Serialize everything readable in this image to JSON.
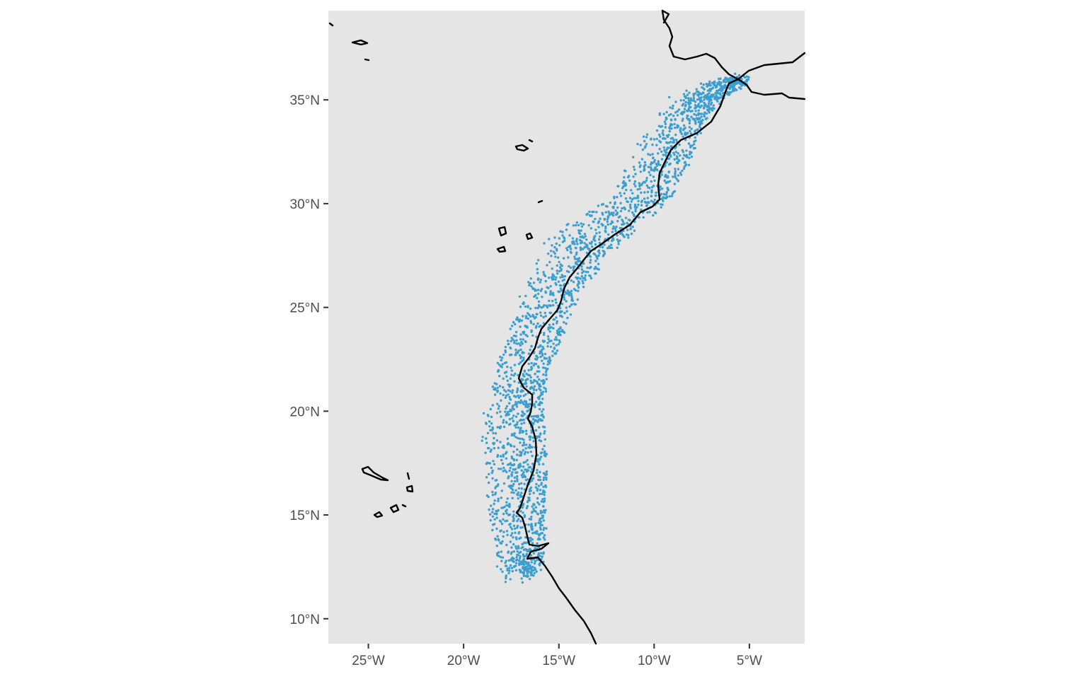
{
  "map": {
    "panel_color": "#e5e5e5",
    "point_color": "#3a9fcf",
    "coast_color": "#000000",
    "x_axis": {
      "ticks": [
        {
          "value": -25,
          "label": "25°W"
        },
        {
          "value": -20,
          "label": "20°W"
        },
        {
          "value": -15,
          "label": "15°W"
        },
        {
          "value": -10,
          "label": "10°W"
        },
        {
          "value": -5,
          "label": "5°W"
        }
      ],
      "range": [
        -27.1,
        -2.1
      ]
    },
    "y_axis": {
      "ticks": [
        {
          "value": 35,
          "label": "35°N"
        },
        {
          "value": 30,
          "label": "30°N"
        },
        {
          "value": 25,
          "label": "25°N"
        },
        {
          "value": 20,
          "label": "20°N"
        },
        {
          "value": 15,
          "label": "15°N"
        },
        {
          "value": 10,
          "label": "10°N"
        }
      ],
      "range": [
        8.8,
        39.3
      ]
    },
    "points_distribution": {
      "description_none": "",
      "band_centerline_lon_lat": [
        [
          -5.5,
          36.0
        ],
        [
          -7.0,
          35.6
        ],
        [
          -8.5,
          34.8
        ],
        [
          -9.5,
          33.5
        ],
        [
          -10.2,
          32.0
        ],
        [
          -11.2,
          30.5
        ],
        [
          -13.0,
          29.2
        ],
        [
          -14.5,
          28.0
        ],
        [
          -15.5,
          26.5
        ],
        [
          -16.2,
          25.0
        ],
        [
          -16.8,
          23.5
        ],
        [
          -17.3,
          22.0
        ],
        [
          -17.8,
          20.5
        ],
        [
          -17.9,
          19.0
        ],
        [
          -17.8,
          17.5
        ],
        [
          -17.8,
          16.0
        ],
        [
          -17.6,
          14.5
        ],
        [
          -17.4,
          13.0
        ],
        [
          -17.5,
          12.0
        ]
      ],
      "band_half_width_deg": [
        0.4,
        0.9,
        1.3,
        1.5,
        1.6,
        1.7,
        1.9,
        1.9,
        1.6,
        1.5,
        1.5,
        1.4,
        1.5,
        1.7,
        1.7,
        1.6,
        1.5,
        1.3,
        1.0
      ]
    }
  }
}
